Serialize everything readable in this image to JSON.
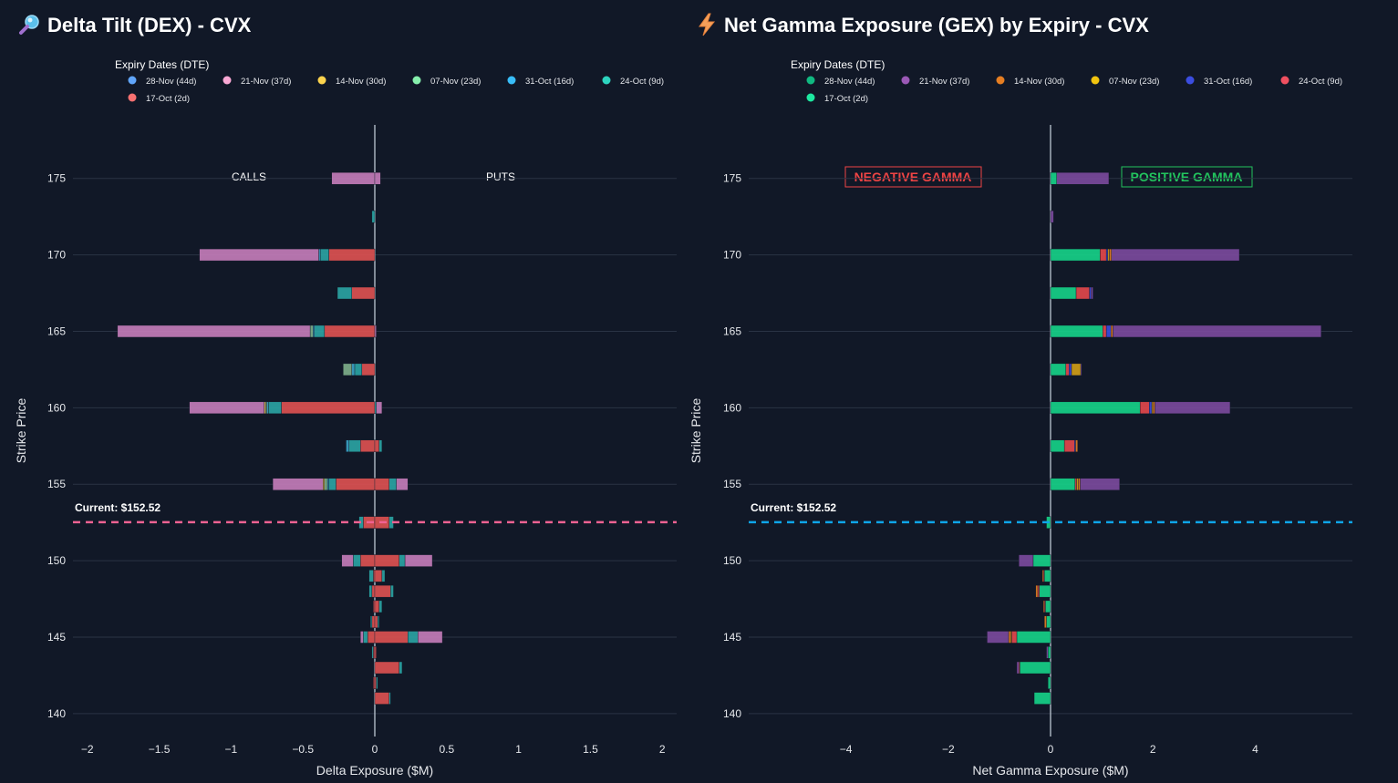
{
  "dex": {
    "title": "Delta Tilt (DEX) - CVX",
    "legend_title": "Expiry Dates (DTE)",
    "calls_label": "CALLS",
    "puts_label": "PUTS",
    "current_label": "Current: $152.52",
    "current_color": "#f06292"
  },
  "gex": {
    "title": "Net Gamma Exposure (GEX) by Expiry - CVX",
    "legend_title": "Expiry Dates (DTE)",
    "negative_label": "NEGATIVE GAMMA",
    "positive_label": "POSITIVE GAMMA",
    "negative_color": "#ef4444",
    "positive_color": "#22c55e",
    "current_label": "Current: $152.52",
    "current_color": "#0ea5e9"
  },
  "chart_data": [
    {
      "type": "bar",
      "orientation": "horizontal",
      "barmode": "relative",
      "title": "Delta Tilt (DEX) - CVX",
      "xlabel": "Delta Exposure ($M)",
      "ylabel": "Strike Price",
      "xlim": [
        -2.1,
        2.1
      ],
      "ylim": [
        138.5,
        178.5
      ],
      "xticks": [
        -2,
        -1.5,
        -1,
        -0.5,
        0,
        0.5,
        1,
        1.5,
        2
      ],
      "xtick_labels": [
        "−2",
        "−1.5",
        "−1",
        "−0.5",
        "0",
        "0.5",
        "1",
        "1.5",
        "2"
      ],
      "yticks": [
        140,
        145,
        150,
        155,
        160,
        165,
        170,
        175
      ],
      "yticks_labels": [
        "140",
        "145",
        "150",
        "155",
        "160",
        "165",
        "170",
        "175"
      ],
      "current_price": 152.52,
      "legend": [
        {
          "name": "28-Nov (44d)",
          "color": "#60a5fa"
        },
        {
          "name": "21-Nov (37d)",
          "color": "#f9a8d4"
        },
        {
          "name": "14-Nov (30d)",
          "color": "#fcd34d"
        },
        {
          "name": "07-Nov (23d)",
          "color": "#86efac"
        },
        {
          "name": "31-Oct (16d)",
          "color": "#38bdf8"
        },
        {
          "name": "24-Oct (9d)",
          "color": "#2dd4bf"
        },
        {
          "name": "17-Oct (2d)",
          "color": "#f87171"
        }
      ],
      "series": [
        {
          "name": "17-Oct (2d)",
          "color": "#e05252",
          "strikes": [
            175,
            172.5,
            170,
            167.5,
            165,
            162.5,
            160,
            157.5,
            155,
            152.5,
            150,
            149,
            148,
            147,
            146,
            145,
            144,
            143,
            142,
            141
          ],
          "values": [
            0,
            0,
            -0.32,
            -0.16,
            -0.35,
            -0.09,
            -0.65,
            -0.1,
            -0.27,
            -0.08,
            -0.1,
            -0.01,
            -0.02,
            -0.01,
            -0.02,
            -0.05,
            -0.01,
            0,
            -0.01,
            0
          ]
        },
        {
          "name": "24-Oct (9d)",
          "color": "#2ba5a5",
          "strikes": [
            175,
            172.5,
            170,
            167.5,
            165,
            162.5,
            160,
            157.5,
            155,
            152.5,
            150,
            149,
            148,
            147,
            146,
            145,
            144,
            143,
            142,
            141
          ],
          "values": [
            0,
            -0.02,
            -0.06,
            -0.1,
            -0.07,
            -0.05,
            -0.09,
            -0.08,
            -0.05,
            -0.03,
            -0.05,
            -0.03,
            -0.02,
            0,
            -0.01,
            -0.03,
            -0.01,
            0,
            0,
            0
          ]
        },
        {
          "name": "31-Oct (16d)",
          "color": "#3ba3c8",
          "strikes": [
            175,
            170,
            165,
            162.5,
            160,
            157.5,
            155
          ],
          "values": [
            0,
            -0.01,
            -0.01,
            -0.02,
            -0.01,
            -0.02,
            -0.01
          ]
        },
        {
          "name": "07-Nov (23d)",
          "color": "#7fb08c",
          "strikes": [
            165,
            162.5,
            160,
            155
          ],
          "values": [
            -0.02,
            -0.06,
            -0.01,
            -0.02
          ]
        },
        {
          "name": "14-Nov (30d)",
          "color": "#e3b84a",
          "strikes": [
            160,
            155
          ],
          "values": [
            -0.01,
            -0.01
          ]
        },
        {
          "name": "21-Nov (37d)",
          "color": "#c77dbb",
          "strikes": [
            175,
            170,
            165,
            160,
            155,
            150,
            145
          ],
          "values": [
            -0.3,
            -0.83,
            -1.34,
            -0.52,
            -0.35,
            -0.08,
            -0.02
          ]
        },
        {
          "name": "17-Oct (2d) puts",
          "color": "#e05252",
          "strikes": [
            157.5,
            155,
            152.5,
            150,
            149,
            148,
            147,
            146,
            145,
            144,
            143,
            142,
            141
          ],
          "values": [
            0.03,
            0.1,
            0.1,
            0.17,
            0.05,
            0.11,
            0.03,
            0.02,
            0.23,
            0.01,
            0.17,
            0.01,
            0.1
          ]
        },
        {
          "name": "24-Oct (9d) puts",
          "color": "#2ba5a5",
          "strikes": [
            160,
            157.5,
            155,
            152.5,
            150,
            149,
            148,
            147,
            146,
            145,
            143,
            142,
            141
          ],
          "values": [
            0.01,
            0.02,
            0.05,
            0.03,
            0.04,
            0.02,
            0.02,
            0.02,
            0.01,
            0.07,
            0.02,
            0.01,
            0.01
          ]
        },
        {
          "name": "21-Nov (37d) puts",
          "color": "#c77dbb",
          "strikes": [
            175,
            165,
            160,
            155,
            150,
            145
          ],
          "values": [
            0.04,
            0.01,
            0.04,
            0.08,
            0.19,
            0.17
          ]
        }
      ]
    },
    {
      "type": "bar",
      "orientation": "horizontal",
      "barmode": "relative",
      "title": "Net Gamma Exposure (GEX) by Expiry - CVX",
      "xlabel": "Net Gamma Exposure ($M)",
      "ylabel": "Strike Price",
      "xlim": [
        -5.9,
        5.9
      ],
      "ylim": [
        138.5,
        178.5
      ],
      "xticks": [
        -4,
        -2,
        0,
        2,
        4
      ],
      "xtick_labels": [
        "−4",
        "−2",
        "0",
        "2",
        "4"
      ],
      "yticks": [
        140,
        145,
        150,
        155,
        160,
        165,
        170,
        175
      ],
      "yticks_labels": [
        "140",
        "145",
        "150",
        "155",
        "160",
        "165",
        "170",
        "175"
      ],
      "current_price": 152.52,
      "legend": [
        {
          "name": "28-Nov (44d)",
          "color": "#10b981"
        },
        {
          "name": "21-Nov (37d)",
          "color": "#9b59b6"
        },
        {
          "name": "14-Nov (30d)",
          "color": "#e67e22"
        },
        {
          "name": "07-Nov (23d)",
          "color": "#f1c40f"
        },
        {
          "name": "31-Oct (16d)",
          "color": "#3b4de0"
        },
        {
          "name": "24-Oct (9d)",
          "color": "#f05060"
        },
        {
          "name": "17-Oct (2d)",
          "color": "#1de9a0"
        }
      ],
      "series": [
        {
          "name": "17-Oct (2d)",
          "color": "#16d48a",
          "strikes": [
            175,
            170,
            167.5,
            165,
            162.5,
            160,
            157.5,
            155,
            152.5,
            150,
            149,
            148,
            147,
            146,
            145,
            144,
            143,
            142,
            141
          ],
          "values": [
            0.12,
            0.97,
            0.5,
            1.02,
            0.3,
            1.75,
            0.27,
            0.48,
            -0.08,
            -0.34,
            -0.12,
            -0.22,
            -0.1,
            -0.08,
            -0.66,
            -0.05,
            -0.6,
            -0.05,
            -0.32
          ]
        },
        {
          "name": "24-Oct (9d)",
          "color": "#e5484d",
          "strikes": [
            170,
            167.5,
            165,
            162.5,
            160,
            157.5,
            155,
            149,
            148,
            147,
            145,
            143
          ],
          "values": [
            0.12,
            0.26,
            0.07,
            0.06,
            0.18,
            0.2,
            0.03,
            -0.02,
            -0.03,
            -0.02,
            -0.1,
            -0.02
          ]
        },
        {
          "name": "31-Oct (16d)",
          "color": "#3b4de0",
          "strikes": [
            170,
            167.5,
            165,
            162.5,
            160,
            157.5
          ],
          "values": [
            0.03,
            0.03,
            0.09,
            0.05,
            0.05,
            0.02
          ]
        },
        {
          "name": "07-Nov (23d)",
          "color": "#d4a017",
          "strikes": [
            170,
            162.5,
            160,
            155,
            145
          ],
          "values": [
            0.03,
            0.18,
            0.02,
            0.03,
            -0.02
          ]
        },
        {
          "name": "14-Nov (30d)",
          "color": "#e67e22",
          "strikes": [
            170,
            165,
            160,
            157.5,
            155,
            149,
            148,
            147,
            146,
            145
          ],
          "values": [
            0.04,
            0.04,
            0.04,
            0.04,
            0.04,
            -0.02,
            -0.04,
            -0.02,
            -0.04,
            -0.04
          ]
        },
        {
          "name": "21-Nov (37d)",
          "color": "#7c4a9e",
          "strikes": [
            175,
            172.5,
            170,
            167.5,
            165,
            162.5,
            160,
            155,
            150,
            145,
            144,
            143
          ],
          "values": [
            1.02,
            0.06,
            2.5,
            0.04,
            4.07,
            0.02,
            1.47,
            0.77,
            -0.28,
            -0.42,
            -0.03,
            -0.04
          ]
        }
      ]
    }
  ]
}
